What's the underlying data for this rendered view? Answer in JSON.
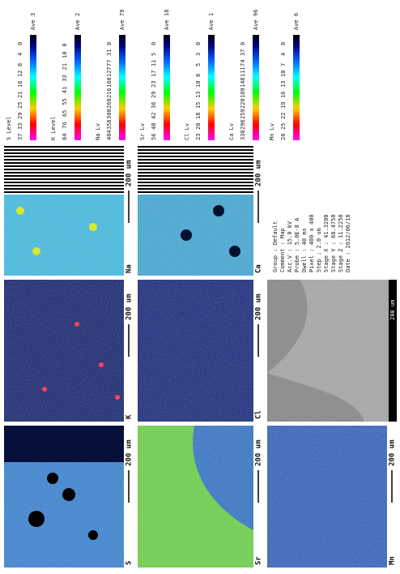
{
  "maps": [
    {
      "label": "S",
      "scale": "200 um",
      "color": "#2f7fd6"
    },
    {
      "label": "K",
      "scale": "200 um",
      "color": "#0a1a6a"
    },
    {
      "label": "Na",
      "scale": "200 um",
      "color": "#3bbde6"
    },
    {
      "label": "Sr",
      "scale": "200 um",
      "color": "#2a70c8"
    },
    {
      "label": "Cl",
      "scale": "200 um",
      "color": "#0c1f78"
    },
    {
      "label": "Ca",
      "scale": "200 um",
      "color": "#3aa8d8"
    },
    {
      "label": "Mn",
      "scale": "200 um",
      "color": "#2a5cc0"
    }
  ],
  "bse": {
    "scale": "200 um"
  },
  "legends": [
    {
      "header": "S Level",
      "levels": [
        37,
        33,
        29,
        25,
        21,
        16,
        12,
        8,
        4,
        0
      ],
      "ave_label": "Ave",
      "ave": 3
    },
    {
      "header": "K Level",
      "levels": [
        84,
        76,
        65,
        55,
        41,
        33,
        21,
        10,
        0
      ],
      "ave_label": "Ave",
      "ave": 2
    },
    {
      "header": "Na Lv",
      "levels": [
        404,
        358,
        300,
        260,
        216,
        160,
        127,
        77,
        31,
        0
      ],
      "ave_label": "Ave",
      "ave": 79
    },
    {
      "header": "Sr Lv",
      "levels": [
        56,
        48,
        42,
        36,
        29,
        23,
        17,
        11,
        5,
        0
      ],
      "ave_label": "Ave",
      "ave": 18
    },
    {
      "header": "Cl Lv",
      "levels": [
        23,
        20,
        18,
        15,
        13,
        10,
        8,
        5,
        3,
        0
      ],
      "ave_label": "Ave",
      "ave": 1
    },
    {
      "header": "Ca Lv",
      "levels": [
        330,
        296,
        259,
        220,
        189,
        148,
        111,
        74,
        37,
        0
      ],
      "ave_label": "Ave",
      "ave": 96
    },
    {
      "header": "Mn Lv",
      "levels": [
        28,
        25,
        22,
        19,
        16,
        13,
        10,
        7,
        4,
        0
      ],
      "ave_label": "Ave",
      "ave": 6
    }
  ],
  "info": [
    "Group : Default",
    "Comment : Map",
    "Acc.V : 15.0 kV",
    "Probe : 5.0E-8 A",
    "Dwell : 40 ms",
    "Pixel : 400 x 400",
    "Step : 2.0 um",
    "Stage X : 41.3200",
    "Stage Y : 68.4750",
    "Stage Z : 11.2250",
    "Date : 2012/06/18"
  ]
}
